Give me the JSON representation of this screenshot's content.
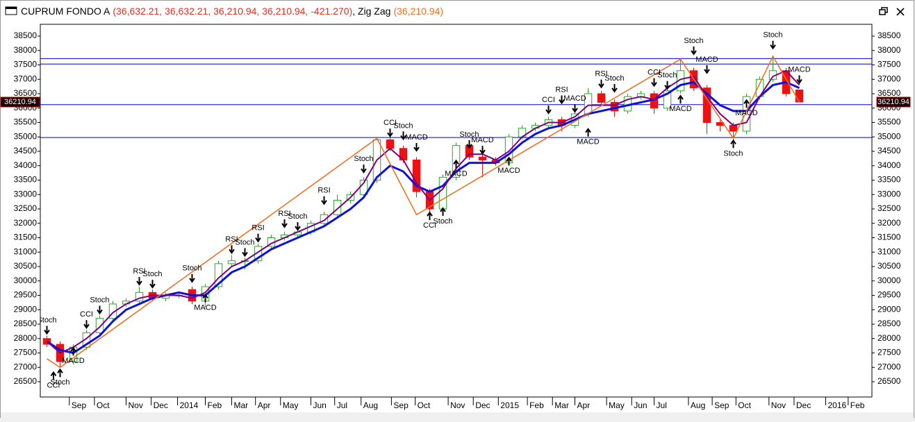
{
  "chart_data": {
    "type": "candlestick",
    "title": "CUPRUM FONDO A",
    "ohlc_label": "(36,632.21, 36,632.21, 36,210.94, 36,210.94, -421.270)",
    "indicator": ", Zig Zag",
    "indicator_value": "(36,210.94)",
    "open": [
      28000,
      27800,
      27200,
      27700,
      28200,
      28700,
      29200,
      29300,
      29600,
      29400,
      29500,
      29700,
      29300,
      29800,
      30600,
      30700,
      30700,
      31200,
      31500,
      31600,
      31700,
      32000,
      32300,
      32800,
      33000,
      33500,
      34900,
      34600,
      34200,
      33100,
      32500,
      33600,
      34700,
      34300,
      34200,
      34100,
      35000,
      35300,
      35400,
      35600,
      35400,
      35800,
      36500,
      36200,
      35900,
      36400,
      36500,
      36000,
      36600,
      37300,
      36700,
      35500,
      35400,
      35200,
      36400,
      37000,
      37300,
      36632.21
    ],
    "high": [
      28100,
      27900,
      27800,
      28300,
      28800,
      29300,
      29400,
      29800,
      29700,
      29600,
      29600,
      29800,
      29900,
      30700,
      30900,
      30800,
      31300,
      31600,
      31700,
      31800,
      32100,
      32400,
      33000,
      33100,
      33600,
      35000,
      35000,
      34700,
      34300,
      33200,
      33700,
      34800,
      34800,
      34400,
      34300,
      35100,
      35400,
      35500,
      35700,
      35700,
      35900,
      36700,
      36600,
      36300,
      36500,
      36600,
      36600,
      36800,
      37700,
      37400,
      36800,
      35600,
      35500,
      36500,
      37100,
      37800,
      37400,
      36632.21
    ],
    "low": [
      27700,
      27000,
      27100,
      27600,
      28100,
      28600,
      29100,
      29200,
      29300,
      29300,
      29400,
      29200,
      29100,
      29700,
      30500,
      30400,
      30600,
      31100,
      31400,
      31500,
      31600,
      31900,
      32200,
      32700,
      32900,
      33400,
      34500,
      34100,
      32900,
      32300,
      32400,
      33500,
      34200,
      33600,
      34000,
      34000,
      34900,
      35200,
      35300,
      35200,
      35300,
      35700,
      36100,
      35700,
      35800,
      36300,
      35800,
      35900,
      36500,
      36600,
      35100,
      35200,
      34900,
      35100,
      36300,
      36900,
      36400,
      36210.94
    ],
    "close": [
      27800,
      27200,
      27700,
      28200,
      28700,
      29200,
      29300,
      29600,
      29400,
      29500,
      29500,
      29300,
      29800,
      30600,
      30700,
      30700,
      31200,
      31500,
      31600,
      31700,
      32000,
      32300,
      32800,
      33000,
      33500,
      34900,
      34600,
      34200,
      33100,
      32500,
      33600,
      34700,
      34300,
      34200,
      34100,
      35000,
      35300,
      35400,
      35600,
      35400,
      35800,
      36500,
      36200,
      35900,
      36400,
      36500,
      36000,
      36600,
      37300,
      36700,
      35500,
      35400,
      35200,
      36400,
      37000,
      37300,
      36500,
      36210.94
    ],
    "up_color": "#22aa22",
    "down_color": "#ee1111",
    "moving_averages": [
      {
        "color": "#1010dd",
        "values": [
          27900,
          27600,
          27500,
          27800,
          28100,
          28600,
          29000,
          29200,
          29400,
          29500,
          29600,
          29500,
          29500,
          29900,
          30300,
          30500,
          30800,
          31100,
          31300,
          31500,
          31700,
          31900,
          32200,
          32500,
          32900,
          33600,
          34000,
          33800,
          33300,
          33100,
          33300,
          33800,
          34100,
          34100,
          34100,
          34400,
          34800,
          35100,
          35300,
          35400,
          35600,
          35800,
          35900,
          36000,
          36100,
          36200,
          36300,
          36500,
          36800,
          36900,
          36500,
          36100,
          35900,
          35900,
          36400,
          36800,
          36900,
          36700
        ]
      },
      {
        "color": "#800080",
        "values": [
          27900,
          27500,
          27700,
          28000,
          28400,
          28900,
          29200,
          29400,
          29500,
          29500,
          29500,
          29400,
          29600,
          30100,
          30500,
          30700,
          31000,
          31300,
          31500,
          31700,
          31900,
          32100,
          32500,
          32900,
          33400,
          34200,
          34600,
          34200,
          33400,
          32800,
          33200,
          33900,
          34400,
          34400,
          34200,
          34500,
          35000,
          35300,
          35500,
          35500,
          35700,
          36100,
          36100,
          36100,
          36300,
          36400,
          36300,
          36700,
          37000,
          37100,
          36400,
          35800,
          35400,
          35500,
          36400,
          37100,
          37300,
          36800
        ]
      }
    ],
    "zigzag": {
      "color": "#f07020",
      "x": [
        0,
        1,
        25,
        28,
        48,
        52,
        55,
        57
      ],
      "values": [
        27300,
        27000,
        34950,
        32300,
        37700,
        34950,
        37800,
        36210.94
      ]
    },
    "hlines": [
      37720,
      37530,
      36120,
      34980
    ],
    "hline_color": "#0000cc",
    "last_price": 36210.94,
    "annotations": [
      {
        "text": "Stoch",
        "index": 0,
        "value": 28150,
        "dir": "down"
      },
      {
        "text": "Stoch",
        "index": 1,
        "value": 26950,
        "dir": "up"
      },
      {
        "text": "CCI",
        "index": 0.5,
        "value": 26850,
        "dir": "up"
      },
      {
        "text": "MACD",
        "index": 2,
        "value": 27700,
        "dir": "up"
      },
      {
        "text": "CCI",
        "index": 3,
        "value": 28350,
        "dir": "down"
      },
      {
        "text": "Stoch",
        "index": 4,
        "value": 28850,
        "dir": "down"
      },
      {
        "text": "RSI",
        "index": 7,
        "value": 29850,
        "dir": "down"
      },
      {
        "text": "Stoch",
        "index": 8,
        "value": 29750,
        "dir": "down"
      },
      {
        "text": "Stoch",
        "index": 11,
        "value": 29950,
        "dir": "down"
      },
      {
        "text": "MACD",
        "index": 12,
        "value": 29550,
        "dir": "up"
      },
      {
        "text": "RSI",
        "index": 14,
        "value": 30950,
        "dir": "down"
      },
      {
        "text": "Stoch",
        "index": 15,
        "value": 30850,
        "dir": "down"
      },
      {
        "text": "RSI",
        "index": 16,
        "value": 31350,
        "dir": "down"
      },
      {
        "text": "RSI",
        "index": 18,
        "value": 31850,
        "dir": "down"
      },
      {
        "text": "Stoch",
        "index": 19,
        "value": 31750,
        "dir": "down"
      },
      {
        "text": "RSI",
        "index": 21,
        "value": 32650,
        "dir": "down"
      },
      {
        "text": "Stoch",
        "index": 24,
        "value": 33750,
        "dir": "down"
      },
      {
        "text": "CCI",
        "index": 26,
        "value": 35000,
        "dir": "down"
      },
      {
        "text": "Stoch",
        "index": 27,
        "value": 34900,
        "dir": "down"
      },
      {
        "text": "MACD",
        "index": 28,
        "value": 34500,
        "dir": "down"
      },
      {
        "text": "CCI",
        "index": 29,
        "value": 32400,
        "dir": "up"
      },
      {
        "text": "Stoch",
        "index": 30,
        "value": 32550,
        "dir": "up"
      },
      {
        "text": "MACD",
        "index": 31,
        "value": 34200,
        "dir": "up"
      },
      {
        "text": "Stoch",
        "index": 32,
        "value": 34600,
        "dir": "down"
      },
      {
        "text": "MACD",
        "index": 33,
        "value": 34400,
        "dir": "down"
      },
      {
        "text": "MACD",
        "index": 35,
        "value": 34300,
        "dir": "up"
      },
      {
        "text": "CCI",
        "index": 38,
        "value": 35800,
        "dir": "down"
      },
      {
        "text": "RSI",
        "index": 39,
        "value": 36150,
        "dir": "down"
      },
      {
        "text": "MACD",
        "index": 40,
        "value": 35850,
        "dir": "down"
      },
      {
        "text": "MACD",
        "index": 41,
        "value": 35300,
        "dir": "up"
      },
      {
        "text": "RSI",
        "index": 42,
        "value": 36700,
        "dir": "down"
      },
      {
        "text": "Stoch",
        "index": 43,
        "value": 36550,
        "dir": "down"
      },
      {
        "text": "CCI",
        "index": 46,
        "value": 36750,
        "dir": "down"
      },
      {
        "text": "Stoch",
        "index": 47,
        "value": 36650,
        "dir": "down"
      },
      {
        "text": "MACD",
        "index": 48,
        "value": 36450,
        "dir": "up"
      },
      {
        "text": "Stoch",
        "index": 49,
        "value": 37850,
        "dir": "down"
      },
      {
        "text": "MACD",
        "index": 50,
        "value": 37200,
        "dir": "down"
      },
      {
        "text": "Stoch",
        "index": 52,
        "value": 34900,
        "dir": "up"
      },
      {
        "text": "MACD",
        "index": 53,
        "value": 36300,
        "dir": "up"
      },
      {
        "text": "Stoch",
        "index": 55,
        "value": 38050,
        "dir": "down"
      },
      {
        "text": "MACD",
        "index": 57,
        "value": 36850,
        "dir": "down"
      }
    ],
    "xlim": [
      -0.5,
      62.5
    ],
    "ylim": [
      25970,
      38910
    ],
    "yticks": [
      26500,
      27000,
      27500,
      28000,
      28500,
      29000,
      29500,
      30000,
      30500,
      31000,
      31500,
      32000,
      32500,
      33000,
      33500,
      34000,
      34500,
      35000,
      35500,
      36000,
      36500,
      37000,
      37500,
      38000,
      38500
    ],
    "xticks": [
      {
        "value": 1.7,
        "label": "Sep"
      },
      {
        "value": 3.6,
        "label": "Oct"
      },
      {
        "value": 6.0,
        "label": "Nov"
      },
      {
        "value": 7.9,
        "label": "Dec"
      },
      {
        "value": 9.9,
        "label": "2014"
      },
      {
        "value": 12.0,
        "label": "Feb"
      },
      {
        "value": 14.0,
        "label": "Mar"
      },
      {
        "value": 15.8,
        "label": "Apr"
      },
      {
        "value": 17.7,
        "label": "May"
      },
      {
        "value": 20.0,
        "label": "Jun"
      },
      {
        "value": 21.8,
        "label": "Jul"
      },
      {
        "value": 23.8,
        "label": "Aug"
      },
      {
        "value": 26.1,
        "label": "Sep"
      },
      {
        "value": 27.9,
        "label": "Oct"
      },
      {
        "value": 30.4,
        "label": "Nov"
      },
      {
        "value": 32.3,
        "label": "Dec"
      },
      {
        "value": 34.2,
        "label": "2015"
      },
      {
        "value": 36.4,
        "label": "Feb"
      },
      {
        "value": 38.3,
        "label": "Mar"
      },
      {
        "value": 40.0,
        "label": "Apr"
      },
      {
        "value": 42.4,
        "label": "May"
      },
      {
        "value": 44.3,
        "label": "Jun"
      },
      {
        "value": 46.0,
        "label": "Jul"
      },
      {
        "value": 48.6,
        "label": "Aug"
      },
      {
        "value": 50.4,
        "label": "Sep"
      },
      {
        "value": 52.2,
        "label": "Oct"
      },
      {
        "value": 54.7,
        "label": "Nov"
      },
      {
        "value": 56.6,
        "label": "Dec"
      },
      {
        "value": 59.0,
        "label": "2016"
      },
      {
        "value": 60.7,
        "label": "Feb"
      }
    ]
  }
}
